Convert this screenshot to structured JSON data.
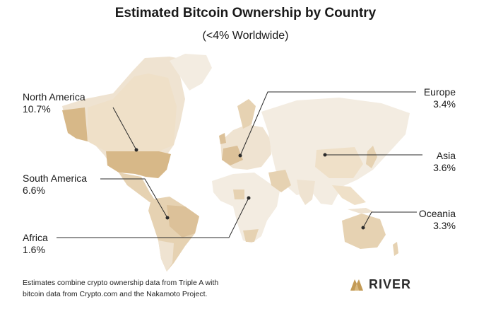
{
  "title": "Estimated Bitcoin Ownership by Country",
  "subtitle": "(<4% Worldwide)",
  "regions": {
    "north_america": {
      "name": "North America",
      "value": "10.7%"
    },
    "south_america": {
      "name": "South America",
      "value": "6.6%"
    },
    "africa": {
      "name": "Africa",
      "value": "1.6%"
    },
    "europe": {
      "name": "Europe",
      "value": "3.4%"
    },
    "asia": {
      "name": "Asia",
      "value": "3.6%"
    },
    "oceania": {
      "name": "Oceania",
      "value": "3.3%"
    }
  },
  "footnote": {
    "line1": "Estimates combine crypto ownership data from Triple A with",
    "line2": "bitcoin data from Crypto.com and the Nakamoto Project."
  },
  "brand": {
    "name": "RIVER",
    "icon": "river-logo-icon"
  },
  "colors": {
    "land_base": "#f3ece1",
    "land_light": "#efe3d1",
    "land_mid": "#e6d2b2",
    "land_dark": "#d7b888",
    "leader_line": "#2b2b2b",
    "brand_gold": "#c39a55"
  }
}
